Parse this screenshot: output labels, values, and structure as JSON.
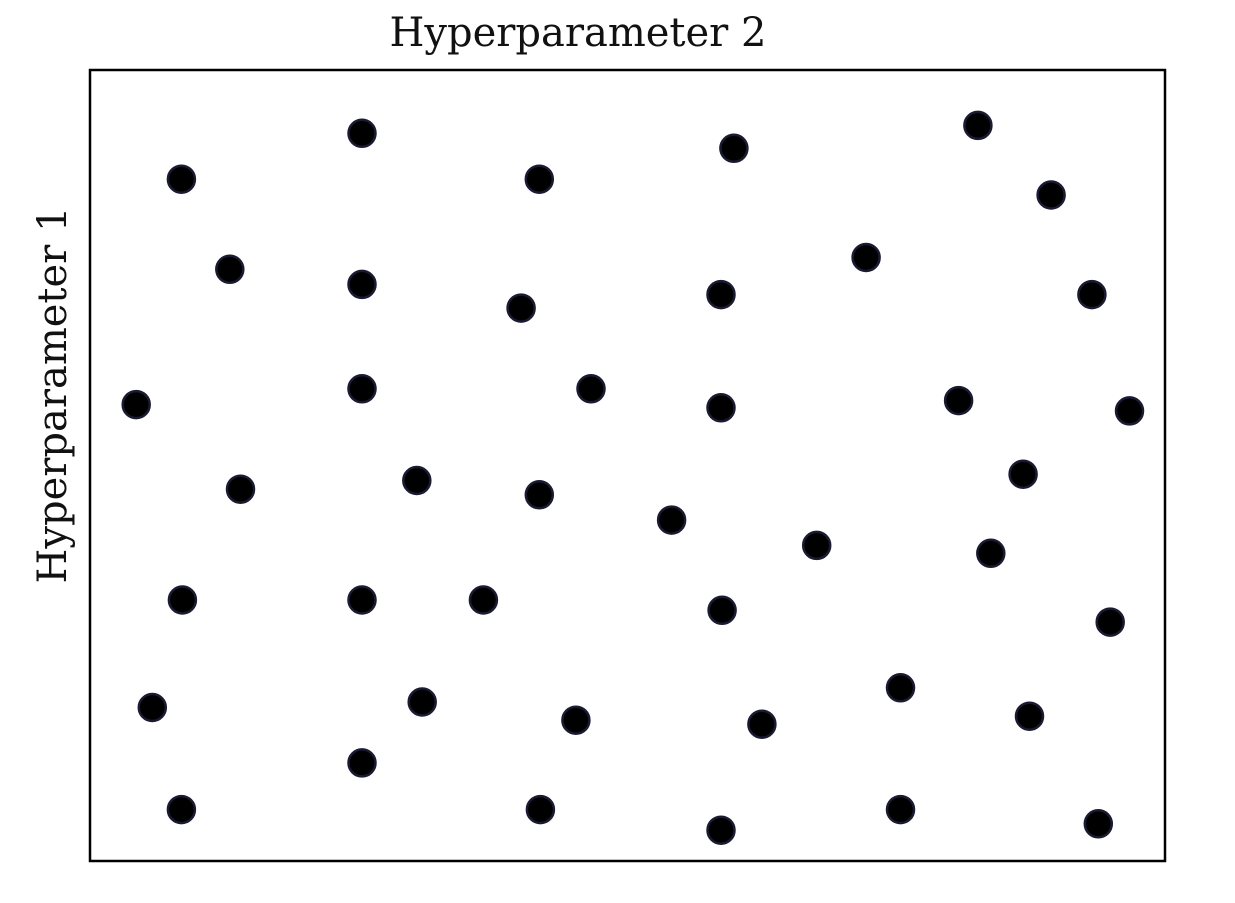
{
  "chart_data": {
    "type": "scatter",
    "title": "",
    "xlabel": "Hyperparameter 2",
    "ylabel": "Hyperparameter 1",
    "xlabel_position": "top",
    "ylabel_position": "left",
    "xlim": [
      0,
      1
    ],
    "ylim": [
      0,
      1
    ],
    "grid": false,
    "ticks": false,
    "colors": {
      "points": "#000000",
      "frame": "#000000"
    },
    "points": [
      {
        "x": 0.085,
        "y": 0.862
      },
      {
        "x": 0.253,
        "y": 0.92
      },
      {
        "x": 0.418,
        "y": 0.862
      },
      {
        "x": 0.599,
        "y": 0.901
      },
      {
        "x": 0.826,
        "y": 0.93
      },
      {
        "x": 0.894,
        "y": 0.842
      },
      {
        "x": 0.13,
        "y": 0.748
      },
      {
        "x": 0.253,
        "y": 0.729
      },
      {
        "x": 0.401,
        "y": 0.699
      },
      {
        "x": 0.587,
        "y": 0.716
      },
      {
        "x": 0.722,
        "y": 0.763
      },
      {
        "x": 0.932,
        "y": 0.716
      },
      {
        "x": 0.043,
        "y": 0.577
      },
      {
        "x": 0.253,
        "y": 0.597
      },
      {
        "x": 0.466,
        "y": 0.597
      },
      {
        "x": 0.587,
        "y": 0.573
      },
      {
        "x": 0.808,
        "y": 0.582
      },
      {
        "x": 0.967,
        "y": 0.569
      },
      {
        "x": 0.14,
        "y": 0.47
      },
      {
        "x": 0.304,
        "y": 0.481
      },
      {
        "x": 0.418,
        "y": 0.463
      },
      {
        "x": 0.541,
        "y": 0.431
      },
      {
        "x": 0.676,
        "y": 0.399
      },
      {
        "x": 0.868,
        "y": 0.489
      },
      {
        "x": 0.838,
        "y": 0.389
      },
      {
        "x": 0.086,
        "y": 0.33
      },
      {
        "x": 0.253,
        "y": 0.33
      },
      {
        "x": 0.366,
        "y": 0.33
      },
      {
        "x": 0.588,
        "y": 0.317
      },
      {
        "x": 0.949,
        "y": 0.302
      },
      {
        "x": 0.058,
        "y": 0.194
      },
      {
        "x": 0.309,
        "y": 0.201
      },
      {
        "x": 0.452,
        "y": 0.178
      },
      {
        "x": 0.625,
        "y": 0.173
      },
      {
        "x": 0.754,
        "y": 0.219
      },
      {
        "x": 0.874,
        "y": 0.183
      },
      {
        "x": 0.253,
        "y": 0.124
      },
      {
        "x": 0.085,
        "y": 0.065
      },
      {
        "x": 0.419,
        "y": 0.065
      },
      {
        "x": 0.587,
        "y": 0.039
      },
      {
        "x": 0.754,
        "y": 0.065
      },
      {
        "x": 0.938,
        "y": 0.047
      }
    ]
  }
}
